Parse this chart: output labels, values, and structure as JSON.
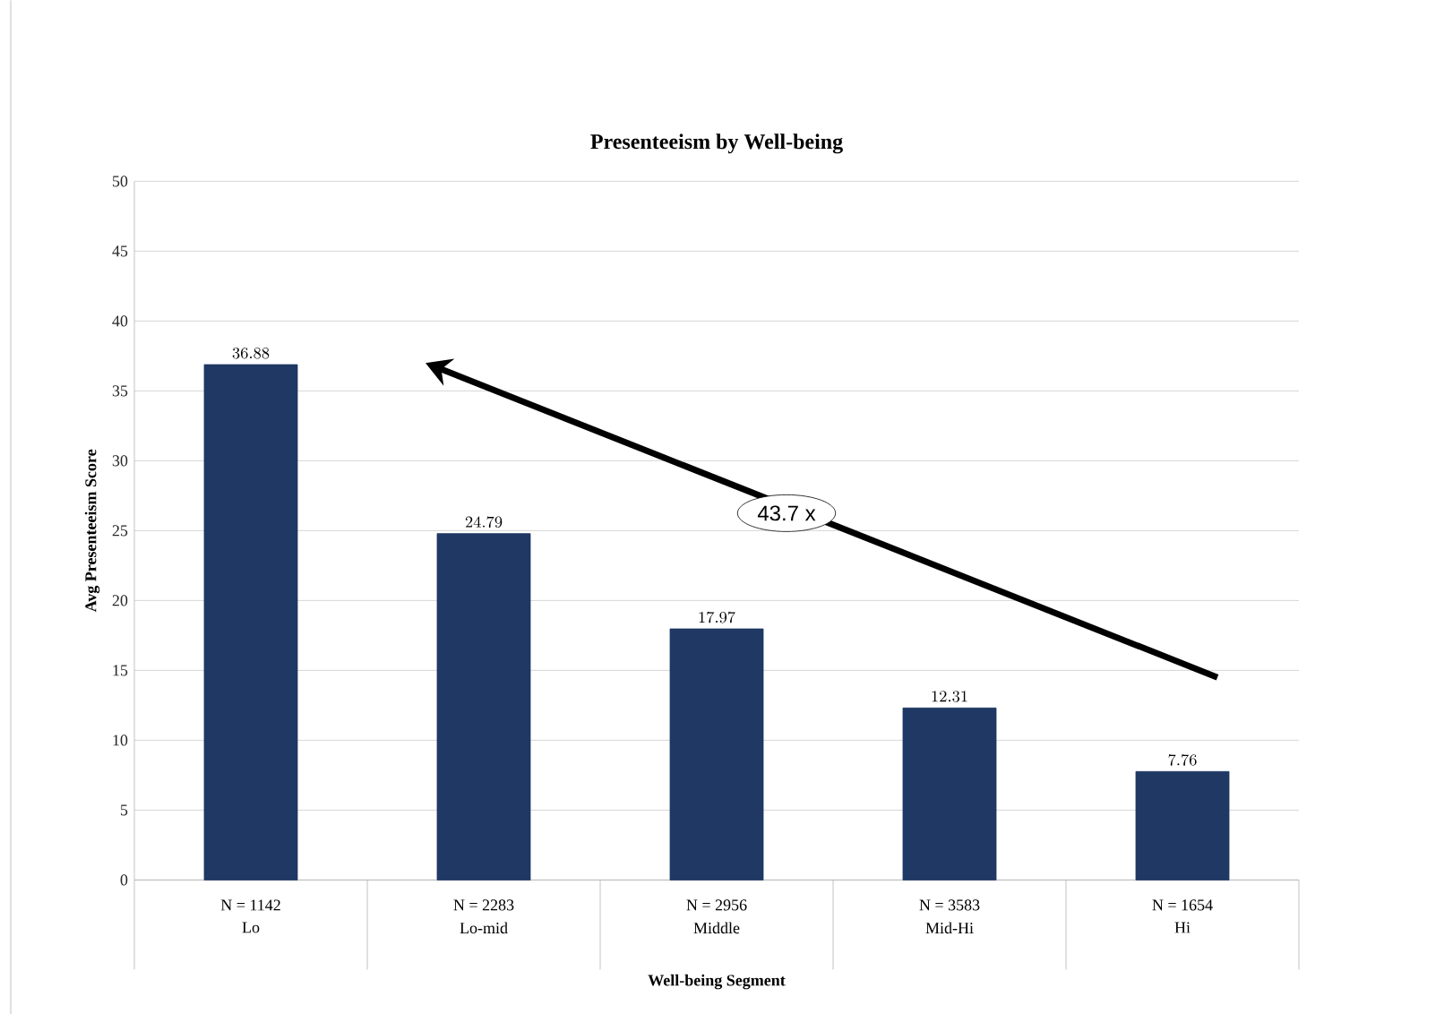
{
  "chart_data": {
    "type": "bar",
    "title": "Presenteeism by Well-being",
    "xlabel": "Well-being Segment",
    "ylabel": "Avg Presenteeism Score",
    "categories": [
      "Lo",
      "Lo-mid",
      "Middle",
      "Mid-Hi",
      "Hi"
    ],
    "values": [
      36.88,
      24.79,
      17.97,
      12.31,
      7.76
    ],
    "color": "#1f3864",
    "data_labels": true,
    "ylim": [
      0,
      50
    ],
    "yticks": [
      0,
      5,
      10,
      15,
      20,
      25,
      30,
      35,
      40,
      45,
      50
    ],
    "grid": "y",
    "annotations": [
      "N = 1142",
      "N = 2283",
      "N = 2956",
      "N = 3583",
      "N = 1654",
      "43.7 x"
    ]
  }
}
